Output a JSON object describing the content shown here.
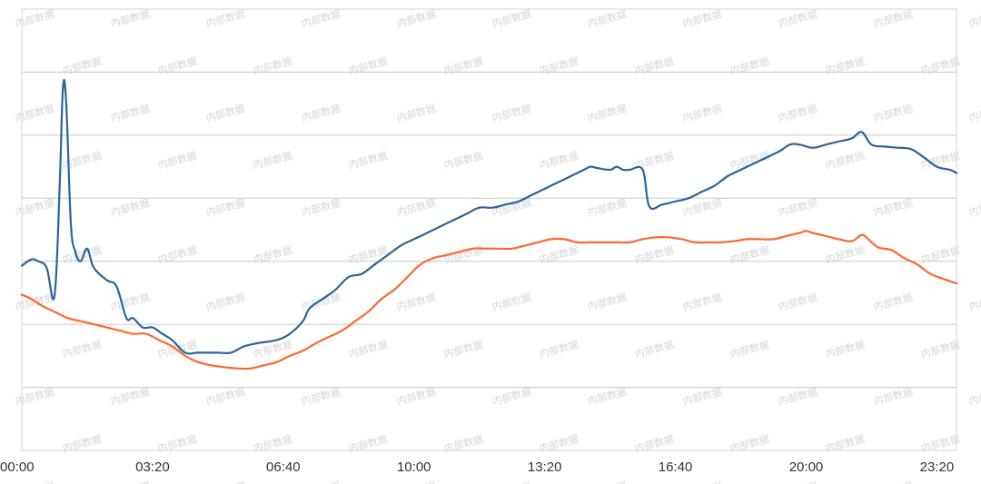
{
  "watermark_text": "内部数据",
  "chart_data": {
    "type": "line",
    "title": "",
    "xlabel": "",
    "ylabel": "",
    "x_unit": "minutes of day",
    "xlim": [
      0,
      1430
    ],
    "ylim": [
      0,
      7
    ],
    "grid": true,
    "legend": "none",
    "x_tick_labels": [
      "00:00",
      "03:20",
      "06:40",
      "10:00",
      "13:20",
      "16:40",
      "20:00",
      "23:20"
    ],
    "x_tick_values": [
      0,
      200,
      400,
      600,
      800,
      1000,
      1200,
      1400
    ],
    "series": [
      {
        "color": "#2e6399",
        "points": [
          [
            0,
            2.93
          ],
          [
            15,
            3.03
          ],
          [
            25,
            3.0
          ],
          [
            38,
            2.9
          ],
          [
            50,
            2.45
          ],
          [
            58,
            4.2
          ],
          [
            63,
            5.75
          ],
          [
            68,
            5.5
          ],
          [
            75,
            3.6
          ],
          [
            82,
            3.15
          ],
          [
            90,
            3.0
          ],
          [
            100,
            3.2
          ],
          [
            110,
            2.9
          ],
          [
            130,
            2.7
          ],
          [
            145,
            2.6
          ],
          [
            160,
            2.1
          ],
          [
            170,
            2.1
          ],
          [
            185,
            1.95
          ],
          [
            200,
            1.95
          ],
          [
            215,
            1.85
          ],
          [
            230,
            1.75
          ],
          [
            250,
            1.55
          ],
          [
            270,
            1.55
          ],
          [
            300,
            1.55
          ],
          [
            320,
            1.55
          ],
          [
            340,
            1.65
          ],
          [
            360,
            1.7
          ],
          [
            390,
            1.75
          ],
          [
            410,
            1.85
          ],
          [
            430,
            2.05
          ],
          [
            440,
            2.25
          ],
          [
            460,
            2.4
          ],
          [
            480,
            2.55
          ],
          [
            500,
            2.75
          ],
          [
            520,
            2.8
          ],
          [
            540,
            2.95
          ],
          [
            560,
            3.1
          ],
          [
            580,
            3.25
          ],
          [
            600,
            3.35
          ],
          [
            620,
            3.45
          ],
          [
            640,
            3.55
          ],
          [
            660,
            3.65
          ],
          [
            680,
            3.75
          ],
          [
            700,
            3.85
          ],
          [
            720,
            3.85
          ],
          [
            740,
            3.9
          ],
          [
            760,
            3.95
          ],
          [
            780,
            4.05
          ],
          [
            800,
            4.15
          ],
          [
            820,
            4.25
          ],
          [
            840,
            4.35
          ],
          [
            860,
            4.45
          ],
          [
            870,
            4.5
          ],
          [
            880,
            4.48
          ],
          [
            900,
            4.45
          ],
          [
            910,
            4.5
          ],
          [
            920,
            4.45
          ],
          [
            930,
            4.45
          ],
          [
            950,
            4.45
          ],
          [
            960,
            3.87
          ],
          [
            980,
            3.9
          ],
          [
            1000,
            3.95
          ],
          [
            1020,
            4.0
          ],
          [
            1040,
            4.1
          ],
          [
            1060,
            4.2
          ],
          [
            1080,
            4.35
          ],
          [
            1100,
            4.45
          ],
          [
            1120,
            4.55
          ],
          [
            1140,
            4.65
          ],
          [
            1160,
            4.75
          ],
          [
            1175,
            4.85
          ],
          [
            1190,
            4.85
          ],
          [
            1210,
            4.8
          ],
          [
            1230,
            4.85
          ],
          [
            1250,
            4.9
          ],
          [
            1270,
            4.95
          ],
          [
            1285,
            5.05
          ],
          [
            1300,
            4.85
          ],
          [
            1320,
            4.82
          ],
          [
            1340,
            4.8
          ],
          [
            1360,
            4.78
          ],
          [
            1380,
            4.65
          ],
          [
            1400,
            4.5
          ],
          [
            1420,
            4.45
          ],
          [
            1430,
            4.4
          ]
        ]
      },
      {
        "color": "#ff6633",
        "points": [
          [
            0,
            2.47
          ],
          [
            15,
            2.4
          ],
          [
            30,
            2.3
          ],
          [
            50,
            2.2
          ],
          [
            70,
            2.1
          ],
          [
            90,
            2.05
          ],
          [
            110,
            2.0
          ],
          [
            130,
            1.95
          ],
          [
            150,
            1.9
          ],
          [
            170,
            1.85
          ],
          [
            190,
            1.85
          ],
          [
            210,
            1.75
          ],
          [
            230,
            1.65
          ],
          [
            250,
            1.5
          ],
          [
            270,
            1.4
          ],
          [
            290,
            1.35
          ],
          [
            310,
            1.32
          ],
          [
            330,
            1.3
          ],
          [
            350,
            1.3
          ],
          [
            370,
            1.35
          ],
          [
            390,
            1.4
          ],
          [
            410,
            1.5
          ],
          [
            430,
            1.58
          ],
          [
            450,
            1.7
          ],
          [
            470,
            1.8
          ],
          [
            490,
            1.9
          ],
          [
            510,
            2.05
          ],
          [
            530,
            2.2
          ],
          [
            550,
            2.4
          ],
          [
            570,
            2.55
          ],
          [
            590,
            2.75
          ],
          [
            610,
            2.95
          ],
          [
            630,
            3.05
          ],
          [
            650,
            3.1
          ],
          [
            670,
            3.15
          ],
          [
            690,
            3.2
          ],
          [
            710,
            3.2
          ],
          [
            730,
            3.2
          ],
          [
            750,
            3.2
          ],
          [
            770,
            3.25
          ],
          [
            790,
            3.3
          ],
          [
            810,
            3.35
          ],
          [
            830,
            3.35
          ],
          [
            850,
            3.3
          ],
          [
            870,
            3.3
          ],
          [
            890,
            3.3
          ],
          [
            910,
            3.3
          ],
          [
            930,
            3.3
          ],
          [
            950,
            3.35
          ],
          [
            970,
            3.38
          ],
          [
            990,
            3.38
          ],
          [
            1010,
            3.35
          ],
          [
            1030,
            3.3
          ],
          [
            1050,
            3.3
          ],
          [
            1070,
            3.3
          ],
          [
            1090,
            3.32
          ],
          [
            1110,
            3.35
          ],
          [
            1130,
            3.35
          ],
          [
            1150,
            3.35
          ],
          [
            1170,
            3.4
          ],
          [
            1190,
            3.45
          ],
          [
            1200,
            3.48
          ],
          [
            1210,
            3.45
          ],
          [
            1230,
            3.4
          ],
          [
            1250,
            3.35
          ],
          [
            1270,
            3.32
          ],
          [
            1285,
            3.42
          ],
          [
            1295,
            3.35
          ],
          [
            1310,
            3.22
          ],
          [
            1330,
            3.18
          ],
          [
            1350,
            3.05
          ],
          [
            1370,
            2.95
          ],
          [
            1390,
            2.8
          ],
          [
            1410,
            2.72
          ],
          [
            1430,
            2.65
          ]
        ]
      }
    ]
  }
}
